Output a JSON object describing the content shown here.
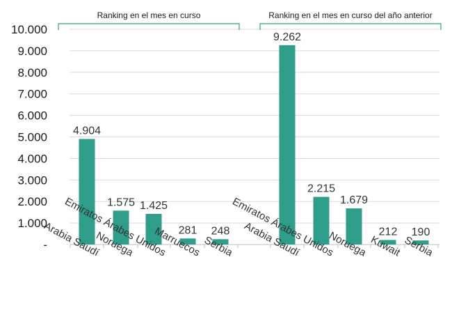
{
  "colors": {
    "bar": "#2E9E8A",
    "bracket": "#2E9E8A",
    "grid": "#d9d9d9",
    "axis": "#bfbfbf"
  },
  "chart_data": {
    "type": "bar",
    "ylim": [
      0,
      10000
    ],
    "y_ticks": [
      {
        "value": 0,
        "label": "-"
      },
      {
        "value": 1000,
        "label": "1.000"
      },
      {
        "value": 2000,
        "label": "2.000"
      },
      {
        "value": 3000,
        "label": "3.000"
      },
      {
        "value": 4000,
        "label": "4.000"
      },
      {
        "value": 5000,
        "label": "5.000"
      },
      {
        "value": 6000,
        "label": "6.000"
      },
      {
        "value": 7000,
        "label": "7.000"
      },
      {
        "value": 8000,
        "label": "8.000"
      },
      {
        "value": 9000,
        "label": "9.000"
      },
      {
        "value": 10000,
        "label": "10.000"
      }
    ],
    "grid": true,
    "groups": [
      {
        "title": "Ranking en el mes en curso",
        "categories": [
          "Arabia Saudí",
          "Noruega",
          "Emiratos Árabes Unidos",
          "Marruecos",
          "Serbia"
        ],
        "values": [
          4904,
          1575,
          1425,
          281,
          248
        ],
        "value_labels": [
          "4.904",
          "1.575",
          "1.425",
          "281",
          "248"
        ]
      },
      {
        "title": "Ranking en el mes en curso del año anterior",
        "categories": [
          "Arabia Saudí",
          "Emiratos Árabes Unidos",
          "Noruega",
          "Kuwait",
          "Serbia"
        ],
        "values": [
          9262,
          2215,
          1679,
          212,
          190
        ],
        "value_labels": [
          "9.262",
          "2.215",
          "1.679",
          "212",
          "190"
        ]
      }
    ]
  }
}
